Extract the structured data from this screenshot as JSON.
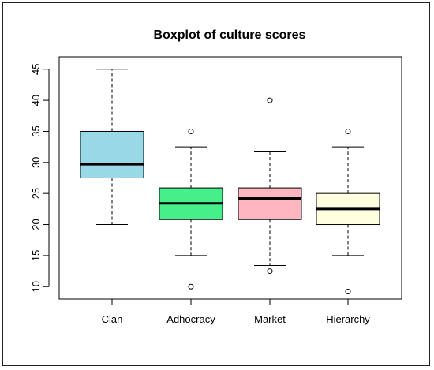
{
  "chart_data": {
    "type": "boxplot",
    "title": "Boxplot of culture scores",
    "xlabel": "",
    "ylabel": "",
    "ylim": [
      8,
      47
    ],
    "yticks": [
      "10",
      "15",
      "20",
      "25",
      "30",
      "35",
      "40",
      "45"
    ],
    "categories": [
      "Clan",
      "Adhocracy",
      "Market",
      "Hierarchy"
    ],
    "boxes": [
      {
        "name": "Clan",
        "whisker_low": 20,
        "q1": 27.5,
        "median": 29.7,
        "q3": 35,
        "whisker_high": 45,
        "outliers": [],
        "color": "#99d8e6"
      },
      {
        "name": "Adhocracy",
        "whisker_low": 15,
        "q1": 20.8,
        "median": 23.4,
        "q3": 25.9,
        "whisker_high": 32.5,
        "outliers": [
          35,
          10
        ],
        "color": "#45f08a"
      },
      {
        "name": "Market",
        "whisker_low": 13.4,
        "q1": 20.8,
        "median": 24.2,
        "q3": 25.9,
        "whisker_high": 31.7,
        "outliers": [
          40,
          12.5
        ],
        "color": "#ffb6c1"
      },
      {
        "name": "Hierarchy",
        "whisker_low": 15,
        "q1": 20,
        "median": 22.5,
        "q3": 25,
        "whisker_high": 32.5,
        "outliers": [
          35,
          9.2
        ],
        "color": "#ffffe0"
      }
    ],
    "grid": false,
    "legend": "none"
  }
}
